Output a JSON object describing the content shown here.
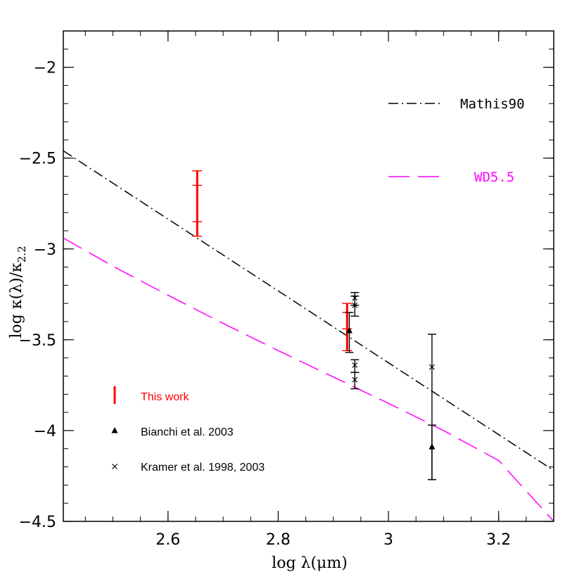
{
  "chart_data": {
    "type": "scatter",
    "xlabel": "log λ(μm)",
    "ylabel_main": "log κ(λ)/κ",
    "ylabel_sub": "2.2",
    "xlim": [
      2.41,
      3.3
    ],
    "ylim": [
      -4.5,
      -1.8
    ],
    "x_ticks": [
      2.6,
      2.8,
      3.0,
      3.2
    ],
    "x_tick_labels": [
      "2.6",
      "2.8",
      "3",
      "3.2"
    ],
    "y_ticks": [
      -2,
      -2.5,
      -3,
      -3.5,
      -4,
      -4.5
    ],
    "y_tick_labels": [
      "−2",
      "−2.5",
      "−3",
      "−3.5",
      "−4",
      "−4.5"
    ],
    "x_minor_step": 0.05,
    "y_minor_step": 0.1,
    "lines": [
      {
        "name": "Mathis90",
        "style": "dash-dot",
        "color": "#000000",
        "x": [
          2.41,
          3.3
        ],
        "y": [
          -2.46,
          -4.22
        ]
      },
      {
        "name": "WD5.5",
        "style": "long-dash",
        "color": "#ff00ff",
        "x": [
          2.41,
          2.5,
          2.6,
          2.7,
          2.8,
          2.9,
          3.0,
          3.1,
          3.2,
          3.3
        ],
        "y": [
          -2.94,
          -3.095,
          -3.255,
          -3.41,
          -3.56,
          -3.705,
          -3.85,
          -4.0,
          -4.165,
          -4.5
        ]
      }
    ],
    "series": [
      {
        "name": "This work",
        "marker": "bar",
        "color": "#ff0000",
        "points": [
          {
            "x": 2.653,
            "low": -2.93,
            "high": -2.57,
            "ticks": [
              -2.65,
              -2.85
            ]
          },
          {
            "x": 2.925,
            "low": -3.56,
            "high": -3.3,
            "ticks": [
              -3.35,
              -3.44
            ]
          }
        ]
      },
      {
        "name": "Bianchi et al. 2003",
        "marker": "triangle",
        "color": "#000000",
        "points": [
          {
            "x": 2.929,
            "y": -3.45,
            "low": -3.57,
            "high": -3.35
          },
          {
            "x": 3.079,
            "y": -4.09,
            "low": -4.27,
            "high": -3.97
          }
        ]
      },
      {
        "name": "Kramer et al. 1998, 2003",
        "marker": "cross",
        "color": "#000000",
        "points": [
          {
            "x": 2.939,
            "y": -3.27,
            "low": -3.31,
            "high": -3.24
          },
          {
            "x": 2.939,
            "y": -3.31,
            "low": -3.37,
            "high": -3.26
          },
          {
            "x": 2.939,
            "y": -3.64,
            "low": -3.68,
            "high": -3.61
          },
          {
            "x": 2.939,
            "y": -3.72,
            "low": -3.77,
            "high": -3.68
          },
          {
            "x": 3.079,
            "y": -3.65,
            "low": -4.27,
            "high": -3.47
          }
        ]
      }
    ],
    "legend_right": [
      "Mathis90",
      "WD5.5"
    ],
    "legend_left": [
      "This work",
      "Bianchi et al. 2003",
      "Kramer et al. 1998, 2003"
    ]
  }
}
